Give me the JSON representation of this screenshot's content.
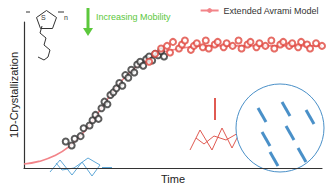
{
  "chart_data": {
    "type": "scatter",
    "x_label": "Time",
    "y_label": "1D-Crystallization",
    "xlim": [
      0,
      100
    ],
    "ylim": [
      0,
      1.1
    ],
    "xticks": [],
    "yticks": [],
    "tick_labels": false,
    "grid": false,
    "legend": "top-right",
    "annotations": [
      {
        "text": "Increasing Mobility",
        "color": "#5cc83c"
      },
      {
        "text": "S",
        "color": "#333333"
      },
      {
        "text": "n",
        "color": "#333333"
      }
    ],
    "series": [
      {
        "type": "scatter",
        "marker": "open_circle",
        "color": "#333333",
        "x": [
          14,
          16,
          17,
          19,
          20,
          22,
          23,
          24,
          25,
          26,
          27,
          28,
          29,
          30,
          31,
          32,
          33,
          34,
          35,
          36,
          37,
          38,
          39,
          40,
          41,
          42,
          43,
          44,
          45,
          46,
          47
        ],
        "values": [
          0.2,
          0.17,
          0.22,
          0.24,
          0.3,
          0.32,
          0.36,
          0.4,
          0.37,
          0.45,
          0.5,
          0.48,
          0.55,
          0.57,
          0.6,
          0.64,
          0.62,
          0.7,
          0.68,
          0.74,
          0.72,
          0.78,
          0.8,
          0.77,
          0.82,
          0.84,
          0.81,
          0.86,
          0.85,
          0.88,
          0.84
        ]
      },
      {
        "type": "scatter",
        "marker": "open_circle",
        "color": "#e0473f",
        "x": [
          42,
          44,
          46,
          48,
          49,
          50,
          52,
          53,
          54,
          56,
          57,
          58,
          60,
          61,
          62,
          64,
          65,
          67,
          68,
          70,
          72,
          73,
          75,
          76,
          78,
          79,
          81,
          83,
          84,
          86,
          87,
          89,
          90,
          92,
          93,
          95,
          96,
          98,
          100
        ],
        "values": [
          0.8,
          0.86,
          0.9,
          0.92,
          0.87,
          0.95,
          0.9,
          0.93,
          0.96,
          0.89,
          0.92,
          0.94,
          0.91,
          0.96,
          0.9,
          0.93,
          0.95,
          0.91,
          0.94,
          0.92,
          0.96,
          0.9,
          0.93,
          0.95,
          0.91,
          0.94,
          0.92,
          0.96,
          0.9,
          0.93,
          0.95,
          0.92,
          0.94,
          0.91,
          0.95,
          0.93,
          0.9,
          0.94,
          0.92
        ]
      },
      {
        "type": "line",
        "name": "Extended Avrami Model",
        "color": "#f28489",
        "line_style": "solid",
        "x": [
          0,
          5,
          10,
          15,
          20,
          25,
          30,
          35,
          40,
          45,
          50,
          55,
          60,
          65,
          70,
          75,
          80,
          85,
          90,
          95,
          100
        ],
        "values": [
          0.03,
          0.05,
          0.09,
          0.16,
          0.27,
          0.42,
          0.58,
          0.71,
          0.8,
          0.86,
          0.89,
          0.91,
          0.92,
          0.92,
          0.92,
          0.92,
          0.92,
          0.92,
          0.92,
          0.92,
          0.92
        ]
      }
    ]
  }
}
